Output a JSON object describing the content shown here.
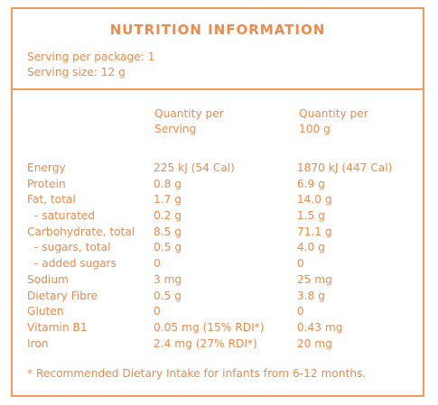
{
  "title": "NUTRITION INFORMATION",
  "serving": {
    "per_package": "Serving per package: 1",
    "size": "Serving size: 12 g"
  },
  "columns": {
    "per_serving_line1": "Quantity per",
    "per_serving_line2": "Serving",
    "per_100g_line1": "Quantity per",
    "per_100g_line2": "100 g"
  },
  "rows": [
    {
      "label": "Energy",
      "per_serving": "225 kJ (54 Cal)",
      "per_100g": "1870 kJ (447 Cal)"
    },
    {
      "label": "Protein",
      "per_serving": "0.8 g",
      "per_100g": "6.9 g"
    },
    {
      "label": "Fat, total",
      "per_serving": "1.7 g",
      "per_100g": "14.0 g"
    },
    {
      "label": "- saturated",
      "per_serving": "0.2 g",
      "per_100g": "1.5 g"
    },
    {
      "label": "Carbohydrate, total",
      "per_serving": "8.5 g",
      "per_100g": "71.1 g"
    },
    {
      "label": "- sugars, total",
      "per_serving": "0.5 g",
      "per_100g": "4.0 g"
    },
    {
      "label": "- added sugars",
      "per_serving": "0",
      "per_100g": "0"
    },
    {
      "label": "Sodium",
      "per_serving": "3 mg",
      "per_100g": "25 mg"
    },
    {
      "label": "Dietary Fibre",
      "per_serving": "0.5 g",
      "per_100g": "3.8 g"
    },
    {
      "label": "Gluten",
      "per_serving": "0",
      "per_100g": "0"
    },
    {
      "label": "Vitamin B1",
      "per_serving": "0.05 mg (15% RDI*)",
      "per_100g": "0.43 mg"
    },
    {
      "label": "Iron",
      "per_serving": "2.4 mg (27% RDI*)",
      "per_100g": "20 mg"
    }
  ],
  "footnote": "* Recommended Dietary Intake for infants from 6-12 months.",
  "colors": {
    "accent": "#f08a4b",
    "border": "#f39a5e"
  }
}
